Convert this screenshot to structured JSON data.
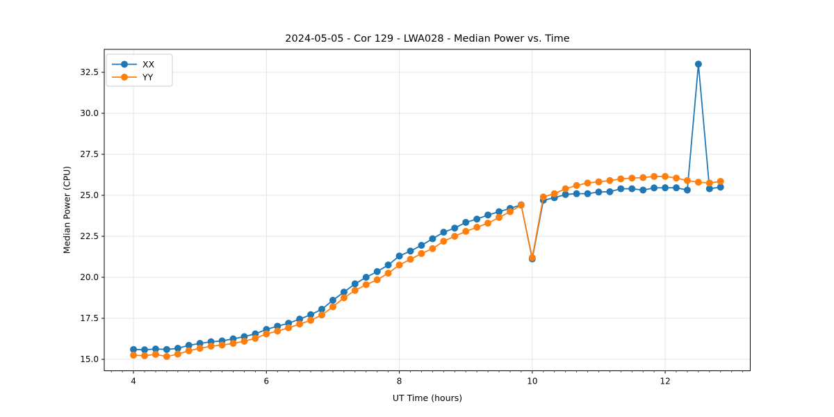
{
  "chart_data": {
    "type": "line",
    "title": "2024-05-05 - Cor 129 - LWA028 - Median Power vs. Time",
    "xlabel": "UT Time (hours)",
    "ylabel": "Median Power (CPU)",
    "xlim": [
      3.56,
      13.28
    ],
    "ylim": [
      14.3,
      33.9
    ],
    "grid": true,
    "legend_position": "upper left",
    "x_ticks": [
      4,
      6,
      8,
      10,
      12
    ],
    "x_tick_labels": [
      "4",
      "6",
      "8",
      "10",
      "12"
    ],
    "x_minor_step": 0.1666667,
    "y_ticks": [
      15.0,
      17.5,
      20.0,
      22.5,
      25.0,
      27.5,
      30.0,
      32.5
    ],
    "y_tick_labels": [
      "15.0",
      "17.5",
      "20.0",
      "22.5",
      "25.0",
      "27.5",
      "30.0",
      "32.5"
    ],
    "x": [
      4.0,
      4.167,
      4.333,
      4.5,
      4.667,
      4.833,
      5.0,
      5.167,
      5.333,
      5.5,
      5.667,
      5.833,
      6.0,
      6.167,
      6.333,
      6.5,
      6.667,
      6.833,
      7.0,
      7.167,
      7.333,
      7.5,
      7.667,
      7.833,
      8.0,
      8.167,
      8.333,
      8.5,
      8.667,
      8.833,
      9.0,
      9.167,
      9.333,
      9.5,
      9.667,
      9.833,
      10.0,
      10.167,
      10.333,
      10.5,
      10.667,
      10.833,
      11.0,
      11.167,
      11.333,
      11.5,
      11.667,
      11.833,
      12.0,
      12.167,
      12.333,
      12.5,
      12.667,
      12.833
    ],
    "series": [
      {
        "name": "XX",
        "color": "#1f77b4",
        "values": [
          15.6,
          15.58,
          15.63,
          15.6,
          15.67,
          15.85,
          15.97,
          16.07,
          16.12,
          16.25,
          16.38,
          16.55,
          16.82,
          17.02,
          17.2,
          17.45,
          17.72,
          18.05,
          18.6,
          19.1,
          19.6,
          20.0,
          20.35,
          20.75,
          21.3,
          21.6,
          21.95,
          22.35,
          22.75,
          23.0,
          23.35,
          23.55,
          23.8,
          24.0,
          24.2,
          24.42,
          21.12,
          24.7,
          24.85,
          25.05,
          25.1,
          25.1,
          25.2,
          25.22,
          25.4,
          25.4,
          25.32,
          25.45,
          25.46,
          25.46,
          25.32,
          33.0,
          25.4,
          25.5
        ]
      },
      {
        "name": "YY",
        "color": "#ff7f0e",
        "values": [
          15.25,
          15.22,
          15.3,
          15.17,
          15.32,
          15.52,
          15.67,
          15.8,
          15.87,
          15.97,
          16.1,
          16.28,
          16.55,
          16.72,
          16.92,
          17.15,
          17.38,
          17.7,
          18.2,
          18.75,
          19.2,
          19.55,
          19.85,
          20.25,
          20.75,
          21.1,
          21.45,
          21.75,
          22.2,
          22.5,
          22.8,
          23.05,
          23.3,
          23.65,
          24.0,
          24.4,
          21.2,
          24.9,
          25.1,
          25.4,
          25.6,
          25.75,
          25.82,
          25.9,
          26.0,
          26.05,
          26.08,
          26.15,
          26.15,
          26.05,
          25.9,
          25.8,
          25.75,
          25.85
        ]
      }
    ],
    "style": {
      "grid_color": "#e4e4e4",
      "spine_color": "#000000",
      "tick_color": "#000000",
      "text_color": "#000000",
      "legend_border": "#cccccc",
      "background": "#ffffff"
    }
  }
}
